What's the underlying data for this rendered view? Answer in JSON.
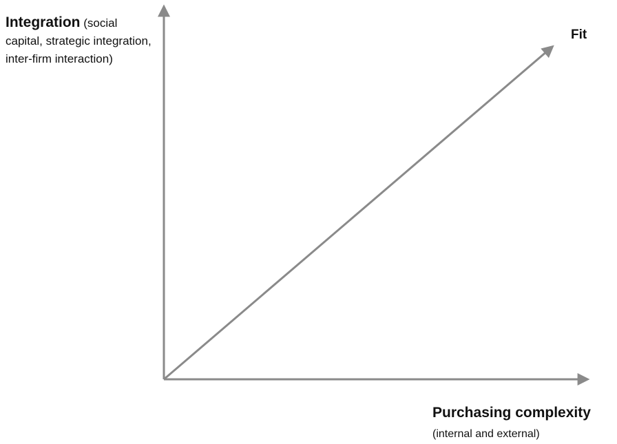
{
  "y_axis": {
    "title": "Integration",
    "note": "(social capital, strategic integration, inter-firm interaction)"
  },
  "line_label": "Fit",
  "x_axis": {
    "title": "Purchasing complexity",
    "note": "(internal and external)"
  }
}
